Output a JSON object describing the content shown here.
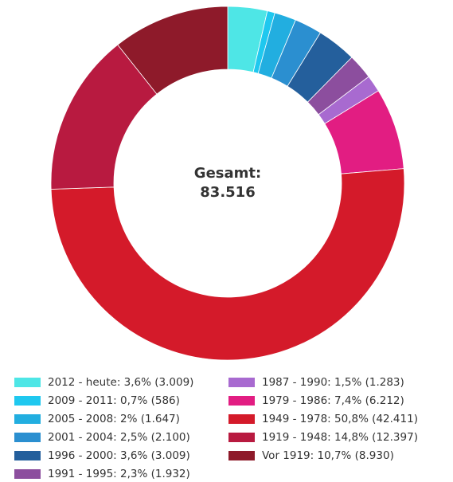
{
  "chart_data": {
    "type": "donut",
    "categories": [
      "2012 - heute: 3,6% (3.009)",
      "2009 - 2011: 0,7% (586)",
      "2005 - 2008: 2% (1.647)",
      "2001 - 2004: 2,5% (2.100)",
      "1996 - 2000: 3,6% (3.009)",
      "1991 - 1995: 2,3% (1.932)",
      "1987 - 1990: 1,5% (1.283)",
      "1979 - 1986: 7,4% (6.212)",
      "1949 - 1978: 50,8% (42.411)",
      "1919 - 1948: 14,8% (12.397)",
      "Vor 1919: 10,7% (8.930)"
    ],
    "values": [
      3009,
      586,
      1647,
      2100,
      3009,
      1932,
      1283,
      6212,
      42411,
      12397,
      8930
    ],
    "colors": [
      "#4ee6e6",
      "#1fc8ef",
      "#22aee0",
      "#2b8fd0",
      "#245f9c",
      "#8c4e9e",
      "#a86ad0",
      "#e21d82",
      "#d41a2a",
      "#b81a40",
      "#8e1a2a"
    ],
    "total_label": "Gesamt:",
    "total": {
      "value": 83516,
      "label": "83.516"
    }
  }
}
